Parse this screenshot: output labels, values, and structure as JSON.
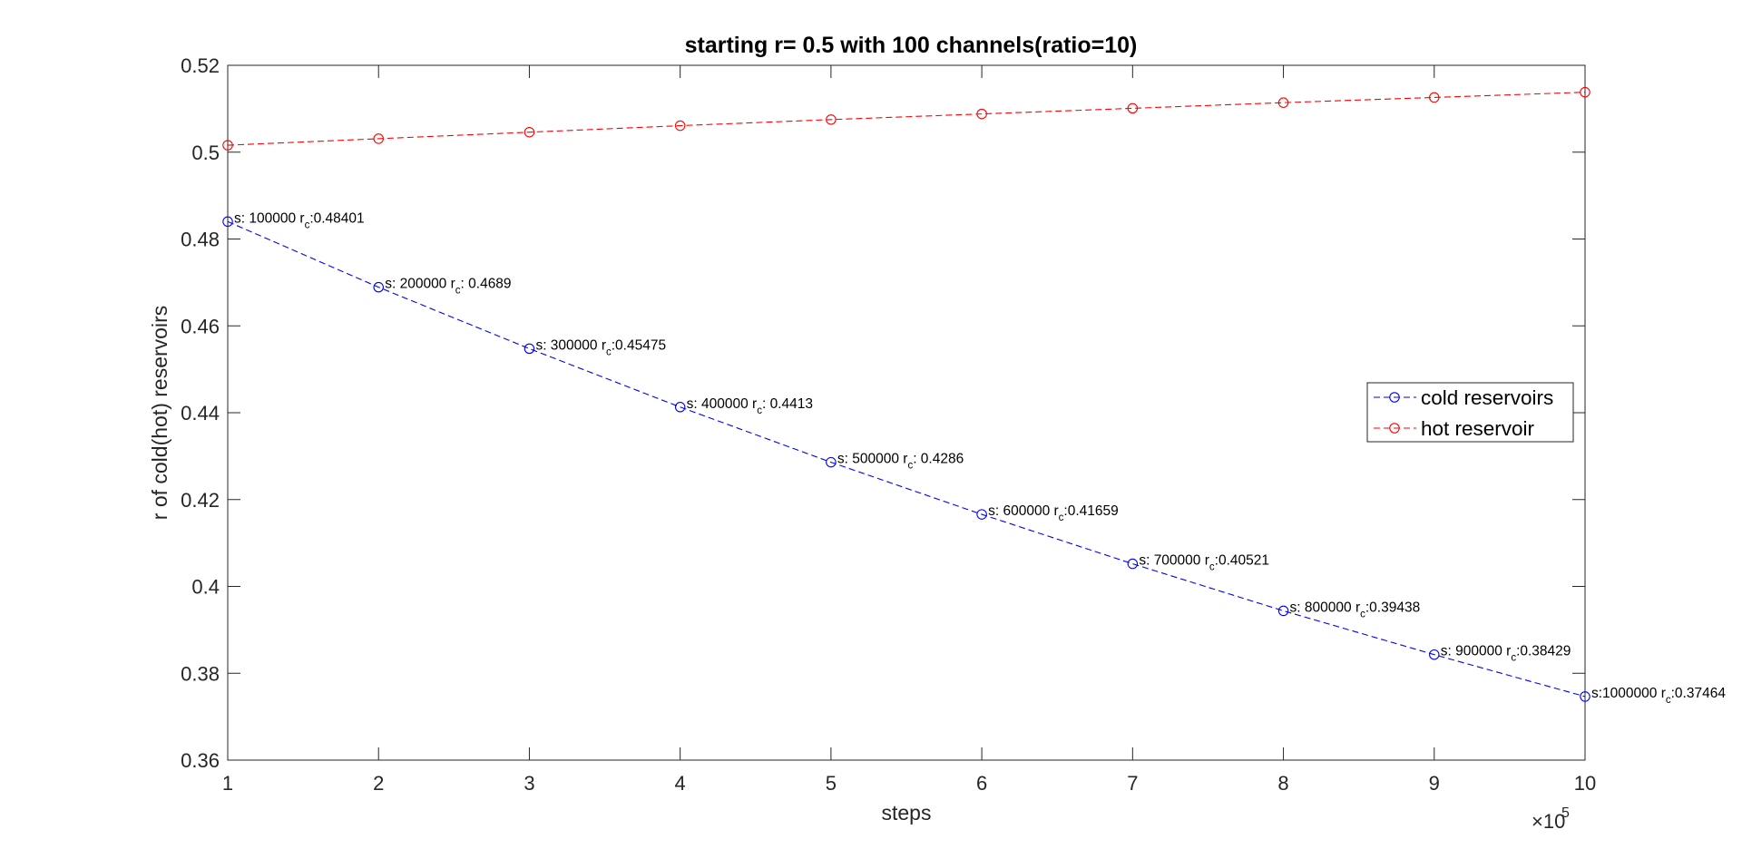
{
  "chart_data": {
    "type": "line",
    "title": "starting r= 0.5 with 100 channels(ratio=10)",
    "xlabel": "steps",
    "ylabel": "r of cold(hot) reservoirs",
    "x_exponent_label": "×10",
    "x_exponent_power": "5",
    "xlim": [
      100000,
      1000000
    ],
    "ylim": [
      0.36,
      0.52
    ],
    "x": [
      100000,
      200000,
      300000,
      400000,
      500000,
      600000,
      700000,
      800000,
      900000,
      1000000
    ],
    "x_ticks": [
      100000,
      200000,
      300000,
      400000,
      500000,
      600000,
      700000,
      800000,
      900000,
      1000000
    ],
    "x_tick_labels": [
      "1",
      "2",
      "3",
      "4",
      "5",
      "6",
      "7",
      "8",
      "9",
      "10"
    ],
    "y_ticks": [
      0.36,
      0.38,
      0.4,
      0.42,
      0.44,
      0.46,
      0.48,
      0.5,
      0.52
    ],
    "y_tick_labels": [
      "0.36",
      "0.38",
      "0.4",
      "0.42",
      "0.44",
      "0.46",
      "0.48",
      "0.5",
      "0.52"
    ],
    "grid": false,
    "legend_position": "right",
    "series": [
      {
        "name": "cold reservoirs",
        "color": "#0000ff",
        "line_style": "dashed",
        "marker": "circle",
        "values": [
          0.48401,
          0.4689,
          0.45475,
          0.4413,
          0.4286,
          0.41659,
          0.40521,
          0.39438,
          0.38429,
          0.37464
        ]
      },
      {
        "name": "hot reservoir",
        "color": "#ff0000",
        "line_style": "dashed",
        "marker": "circle",
        "values": [
          0.5016,
          0.5031,
          0.5046,
          0.5061,
          0.5075,
          0.5088,
          0.5101,
          0.5114,
          0.5126,
          0.5138
        ]
      }
    ],
    "annotations": [
      {
        "s": "s: 100000 r",
        "sub": "c",
        "v": ":0.48401"
      },
      {
        "s": "s: 200000 r",
        "sub": "c",
        "v": ": 0.4689"
      },
      {
        "s": "s: 300000 r",
        "sub": "c",
        "v": ":0.45475"
      },
      {
        "s": "s: 400000 r",
        "sub": "c",
        "v": ": 0.4413"
      },
      {
        "s": "s: 500000 r",
        "sub": "c",
        "v": ": 0.4286"
      },
      {
        "s": "s: 600000 r",
        "sub": "c",
        "v": ":0.41659"
      },
      {
        "s": "s: 700000 r",
        "sub": "c",
        "v": ":0.40521"
      },
      {
        "s": "s: 800000 r",
        "sub": "c",
        "v": ":0.39438"
      },
      {
        "s": "s: 900000 r",
        "sub": "c",
        "v": ":0.38429"
      },
      {
        "s": "s:1000000 r",
        "sub": "c",
        "v": ":0.37464"
      }
    ]
  }
}
